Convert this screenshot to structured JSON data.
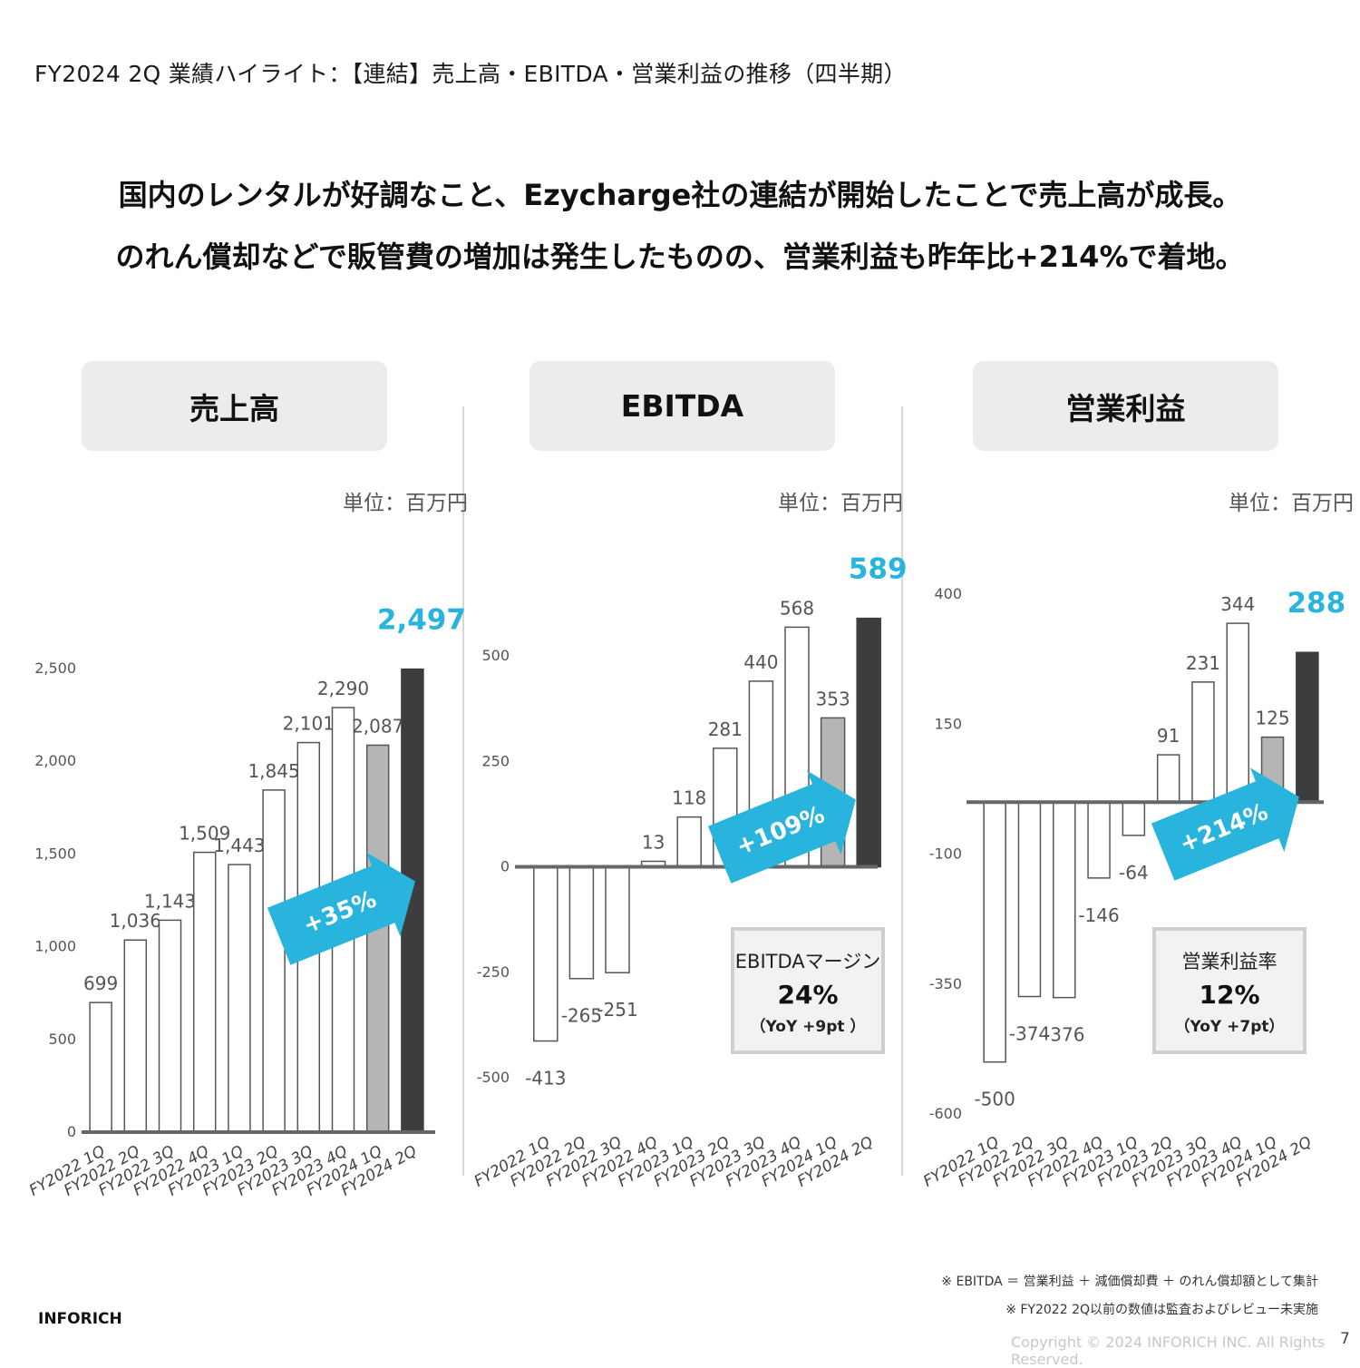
{
  "page_title": "FY2024 2Q 業績ハイライト：【連結】売上高・EBITDA・営業利益の推移（四半期）",
  "headline": {
    "line1": "国内のレンタルが好調なこと、Ezycharge社の連結が開始したことで売上高が成長。",
    "line2": "のれん償却などで販管費の増加は発生したものの、営業利益も昨年比+214%で着地。"
  },
  "panels": [
    {
      "title": "売上高",
      "unit": "単位：百万円"
    },
    {
      "title": "EBITDA",
      "unit": "単位：百万円"
    },
    {
      "title": "営業利益",
      "unit": "単位：百万円"
    }
  ],
  "colors": {
    "accent": "#29b4de",
    "current_bar": "#3d3d3d",
    "prev_bar": "#b5b5b5",
    "bar_outline": "#555555"
  },
  "chart_data": [
    {
      "type": "bar",
      "title": "売上高",
      "categories": [
        "FY2022 1Q",
        "FY2022 2Q",
        "FY2022 3Q",
        "FY2022 4Q",
        "FY2023 1Q",
        "FY2023 2Q",
        "FY2023 3Q",
        "FY2023 4Q",
        "FY2024 1Q",
        "FY2024 2Q"
      ],
      "values": [
        699,
        1036,
        1143,
        1509,
        1443,
        1845,
        2101,
        2290,
        2087,
        2497
      ],
      "value_labels": [
        "699",
        "1,036",
        "1,143",
        "1,509",
        "1,443",
        "1,845",
        "2,101",
        "2,290",
        "2,087",
        "2,497"
      ],
      "yticks": [
        0,
        500,
        1000,
        1500,
        2000,
        2500
      ],
      "ytick_labels": [
        "0",
        "500",
        "1,000",
        "1,500",
        "2,000",
        "2,500"
      ],
      "ylim": [
        0,
        2500
      ],
      "growth_label": "+35%"
    },
    {
      "type": "bar",
      "title": "EBITDA",
      "categories": [
        "FY2022 1Q",
        "FY2022 2Q",
        "FY2022 3Q",
        "FY2022 4Q",
        "FY2023 1Q",
        "FY2023 2Q",
        "FY2023 3Q",
        "FY2023 4Q",
        "FY2024 1Q",
        "FY2024 2Q"
      ],
      "values": [
        -413,
        -265,
        -251,
        13,
        118,
        281,
        440,
        568,
        353,
        589
      ],
      "value_labels": [
        "-413",
        "-265",
        "-251",
        "13",
        "118",
        "281",
        "440",
        "568",
        "353",
        "589"
      ],
      "yticks": [
        -500,
        -250,
        0,
        250,
        500
      ],
      "ytick_labels": [
        "-500",
        "-250",
        "0",
        "250",
        "500"
      ],
      "ylim": [
        -500,
        500
      ],
      "growth_label": "+109%",
      "margin_box": {
        "label": "EBITDAマージン",
        "value": "24%",
        "yoy": "（YoY +9pt ）"
      }
    },
    {
      "type": "bar",
      "title": "営業利益",
      "categories": [
        "FY2022 1Q",
        "FY2022 2Q",
        "FY2022 3Q",
        "FY2022 4Q",
        "FY2023 1Q",
        "FY2023 2Q",
        "FY2023 3Q",
        "FY2023 4Q",
        "FY2024 1Q",
        "FY2024 2Q"
      ],
      "values": [
        -500,
        -374,
        -376,
        -146,
        -64,
        91,
        231,
        344,
        125,
        288
      ],
      "value_labels": [
        "-500",
        "-374",
        "-376",
        "-146",
        "-64",
        "91",
        "231",
        "344",
        "125",
        "288"
      ],
      "yticks": [
        -600,
        -350,
        -100,
        150,
        400
      ],
      "ytick_labels": [
        "-600",
        "-350",
        "-100",
        "150",
        "400"
      ],
      "ylim": [
        -600,
        400
      ],
      "growth_label": "+214%",
      "margin_box": {
        "label": "営業利益率",
        "value": "12%",
        "yoy": "（YoY +7pt）"
      }
    }
  ],
  "footnotes": {
    "note1": "※ EBITDA ＝ 営業利益 ＋ 減価償却費 ＋ のれん償却額として集計",
    "note2": "※ FY2022 2Q以前の数値は監査およびレビュー未実施"
  },
  "company": "INFORICH",
  "copyright": "Copyright © 2024 INFORICH INC. All Rights Reserved.",
  "page_number": "7"
}
